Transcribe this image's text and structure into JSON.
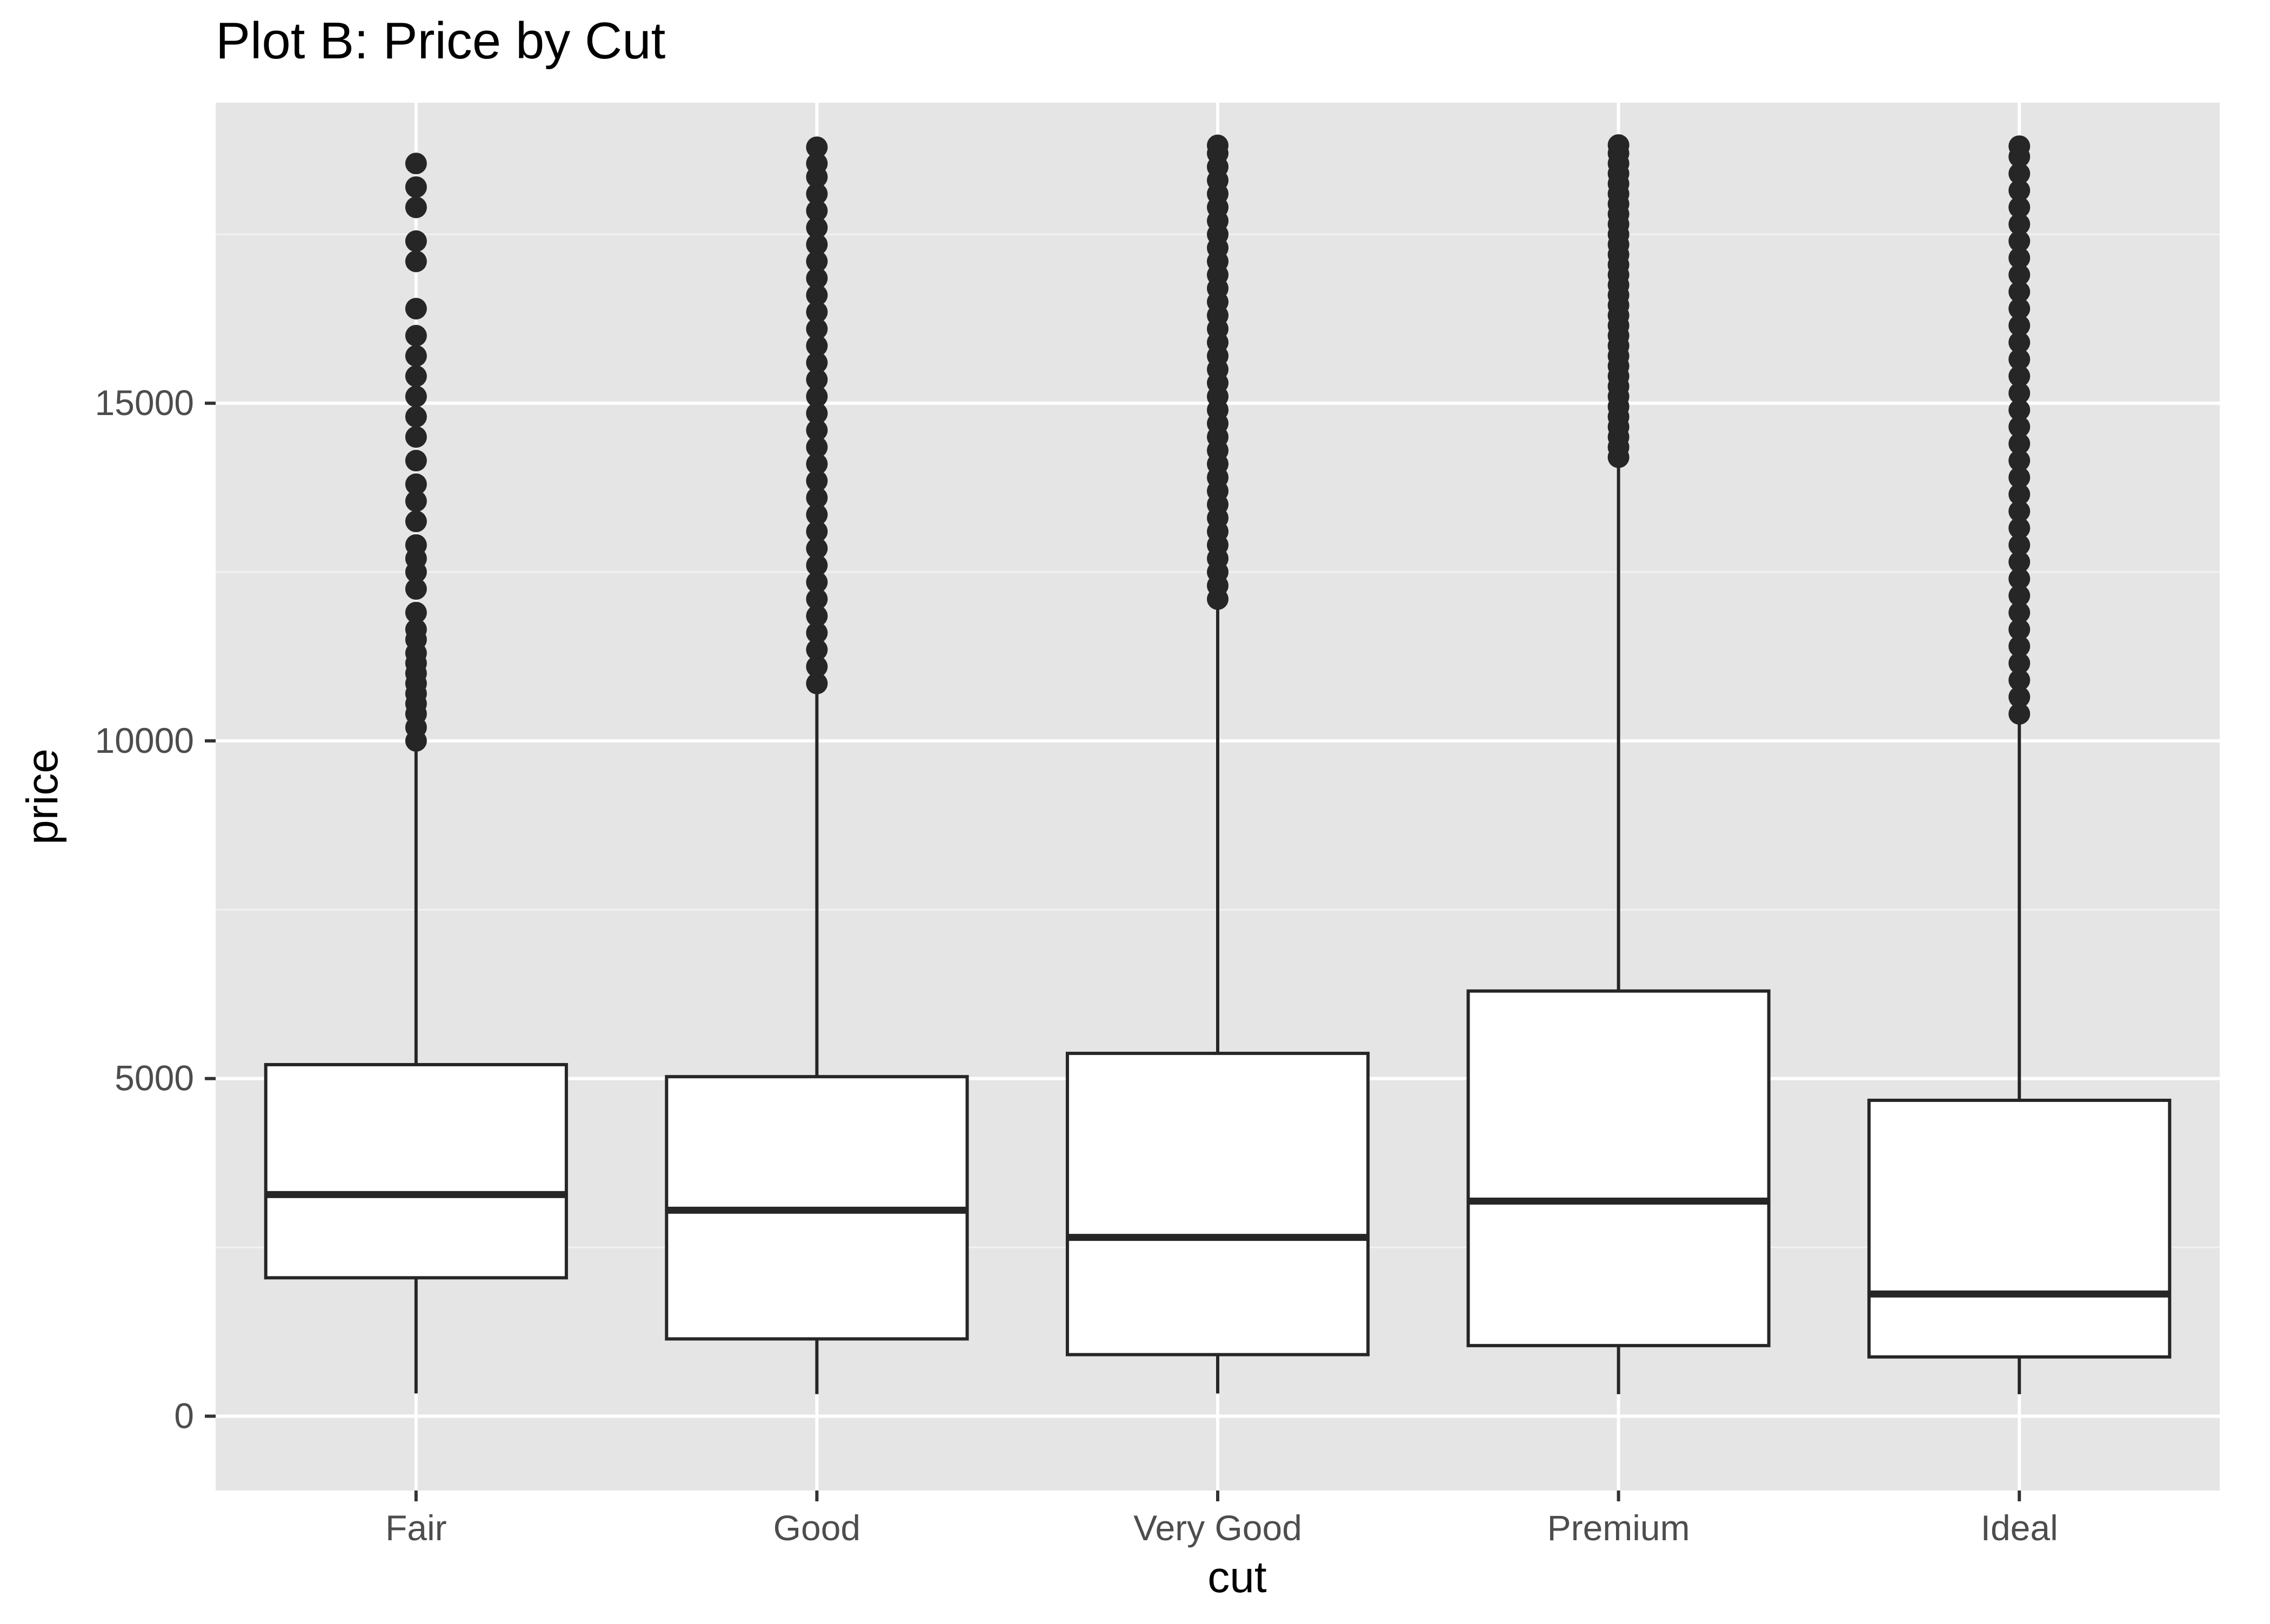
{
  "chart_data": {
    "type": "boxplot",
    "title": "Plot B: Price by Cut",
    "xlabel": "cut",
    "ylabel": "price",
    "ylim": [
      -1100,
      19450
    ],
    "yticks": [
      0,
      5000,
      10000,
      15000
    ],
    "ytick_labels": [
      "0",
      "5000",
      "10000",
      "15000"
    ],
    "grid": true,
    "legend": "none",
    "categories": [
      "Fair",
      "Good",
      "Very Good",
      "Premium",
      "Ideal"
    ],
    "series": [
      {
        "category": "Fair",
        "whisker_low": 337,
        "q1": 2050,
        "median": 3282,
        "q3": 5206,
        "whisker_high": 9950,
        "outliers": [
          10000,
          10200,
          10400,
          10550,
          10700,
          10850,
          11000,
          11150,
          11300,
          11500,
          11650,
          11900,
          12250,
          12500,
          12700,
          12900,
          13250,
          13550,
          13800,
          14150,
          14500,
          14800,
          15100,
          15400,
          15700,
          16000,
          16400,
          17100,
          17400,
          17900,
          18200,
          18550
        ]
      },
      {
        "category": "Good",
        "whisker_low": 327,
        "q1": 1145,
        "median": 3050,
        "q3": 5028,
        "whisker_high": 10800,
        "outliers": [
          10850,
          11100,
          11350,
          11600,
          11850,
          12100,
          12350,
          12600,
          12850,
          13100,
          13350,
          13600,
          13850,
          14100,
          14350,
          14600,
          14850,
          15100,
          15350,
          15600,
          15850,
          16100,
          16350,
          16600,
          16850,
          17100,
          17350,
          17600,
          17850,
          18100,
          18350,
          18550,
          18790
        ]
      },
      {
        "category": "Very Good",
        "whisker_low": 336,
        "q1": 912,
        "median": 2648,
        "q3": 5373,
        "whisker_high": 12050,
        "outliers": [
          12100,
          12300,
          12500,
          12700,
          12900,
          13100,
          13300,
          13500,
          13700,
          13900,
          14100,
          14300,
          14500,
          14700,
          14900,
          15100,
          15300,
          15500,
          15700,
          15900,
          16100,
          16300,
          16500,
          16700,
          16900,
          17100,
          17300,
          17500,
          17700,
          17900,
          18100,
          18300,
          18500,
          18700,
          18818
        ]
      },
      {
        "category": "Premium",
        "whisker_low": 326,
        "q1": 1046,
        "median": 3185,
        "q3": 6296,
        "whisker_high": 14150,
        "outliers": [
          14200,
          14350,
          14500,
          14650,
          14800,
          14950,
          15100,
          15250,
          15400,
          15550,
          15700,
          15850,
          16000,
          16150,
          16300,
          16450,
          16600,
          16750,
          16900,
          17050,
          17200,
          17350,
          17500,
          17650,
          17800,
          17950,
          18100,
          18250,
          18400,
          18550,
          18700,
          18823
        ]
      },
      {
        "category": "Ideal",
        "whisker_low": 326,
        "q1": 878,
        "median": 1810,
        "q3": 4678,
        "whisker_high": 10350,
        "outliers": [
          10400,
          10650,
          10900,
          11150,
          11400,
          11650,
          11900,
          12150,
          12400,
          12650,
          12900,
          13150,
          13400,
          13650,
          13900,
          14150,
          14400,
          14650,
          14900,
          15150,
          15400,
          15650,
          15900,
          16150,
          16400,
          16650,
          16900,
          17150,
          17400,
          17650,
          17900,
          18150,
          18400,
          18650,
          18806
        ]
      }
    ]
  },
  "colors": {
    "panel_background": "#e5e5e5",
    "grid_major": "#ffffff",
    "grid_minor": "#f2f2f2",
    "box_fill": "#ffffff",
    "box_stroke": "#262626",
    "outlier": "#262626",
    "tick_label": "#4d4d4d",
    "tick_mark": "#333333",
    "title": "#000000"
  }
}
